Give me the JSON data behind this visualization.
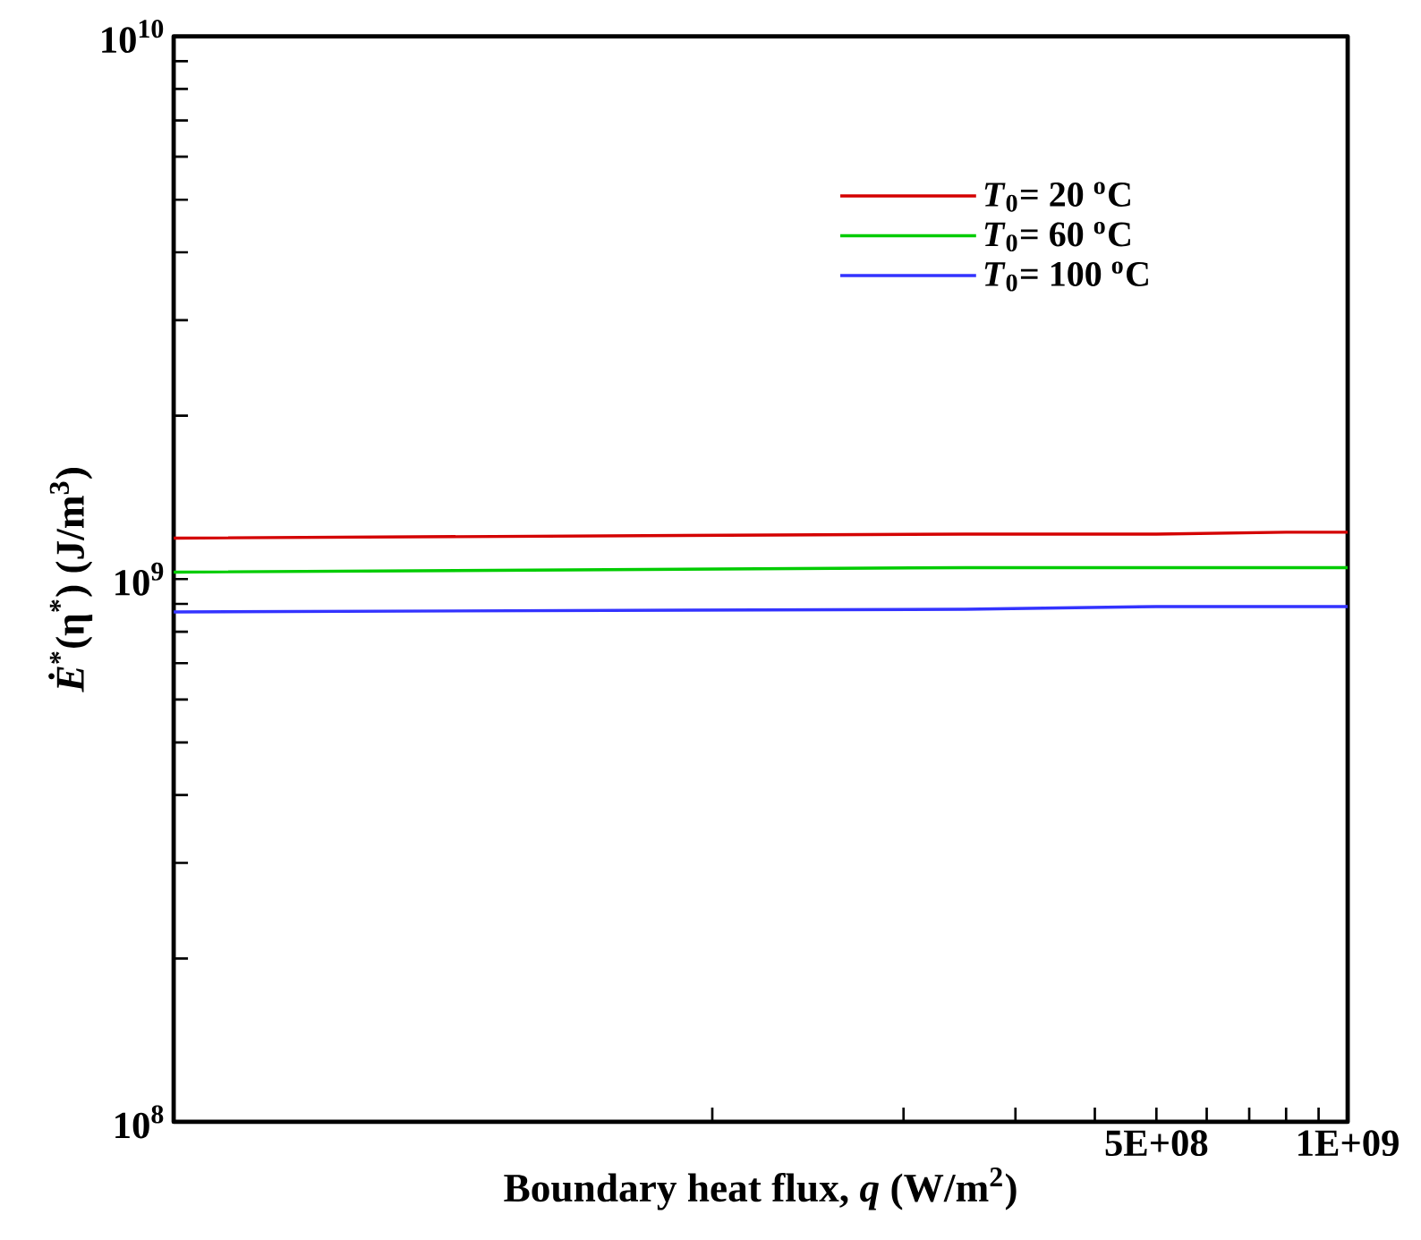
{
  "chart_data": {
    "type": "line",
    "xlabel": "Boundary heat flux, *q* (W/m$^{2}$)",
    "ylabel": "*Ė*$^{*}$(η$^{*}$) (J/m$^{3}$)",
    "x": [
      14200000.0,
      250000000.0,
      500000000.0,
      800000000.0,
      1000000000.0
    ],
    "series": [
      {
        "name": "*T*$_{0}$= 20 $^{o}$C",
        "color": "#d40000",
        "values": [
          1190000000.0,
          1210000000.0,
          1210000000.0,
          1220000000.0,
          1220000000.0
        ]
      },
      {
        "name": "*T*$_{0}$= 60 $^{o}$C",
        "color": "#00cc00",
        "values": [
          1030000000.0,
          1050000000.0,
          1050000000.0,
          1050000000.0,
          1050000000.0
        ]
      },
      {
        "name": "*T*$_{0}$= 100 $^{o}$C",
        "color": "#3333ff",
        "values": [
          870000000.0,
          880000000.0,
          890000000.0,
          890000000.0,
          890000000.0
        ]
      }
    ],
    "log": "xy",
    "xlim": [
      14200000.0,
      1000000000.0
    ],
    "ylim": [
      100000000.0,
      10000000000.0
    ],
    "xticks": [
      {
        "value": 100000000.0,
        "label": null
      },
      {
        "value": 200000000.0,
        "label": null
      },
      {
        "value": 300000000.0,
        "label": null
      },
      {
        "value": 400000000.0,
        "label": null
      },
      {
        "value": 500000000.0,
        "label": "5E+08"
      },
      {
        "value": 600000000.0,
        "label": null
      },
      {
        "value": 700000000.0,
        "label": null
      },
      {
        "value": 800000000.0,
        "label": null
      },
      {
        "value": 900000000.0,
        "label": null
      },
      {
        "value": 1000000000.0,
        "label": "1E+09"
      }
    ],
    "yticks": [
      {
        "value": 100000000.0,
        "label": "10$^{8}$"
      },
      {
        "value": 200000000.0,
        "label": null
      },
      {
        "value": 300000000.0,
        "label": null
      },
      {
        "value": 400000000.0,
        "label": null
      },
      {
        "value": 500000000.0,
        "label": null
      },
      {
        "value": 600000000.0,
        "label": null
      },
      {
        "value": 700000000.0,
        "label": null
      },
      {
        "value": 800000000.0,
        "label": null
      },
      {
        "value": 900000000.0,
        "label": null
      },
      {
        "value": 1000000000.0,
        "label": "10$^{9}$"
      },
      {
        "value": 2000000000.0,
        "label": null
      },
      {
        "value": 3000000000.0,
        "label": null
      },
      {
        "value": 4000000000.0,
        "label": null
      },
      {
        "value": 5000000000.0,
        "label": null
      },
      {
        "value": 6000000000.0,
        "label": null
      },
      {
        "value": 7000000000.0,
        "label": null
      },
      {
        "value": 8000000000.0,
        "label": null
      },
      {
        "value": 9000000000.0,
        "label": null
      },
      {
        "value": 10000000000.0,
        "label": "10$^{10}$"
      }
    ],
    "grid": false,
    "legend": "top right",
    "marker": "none",
    "line_style": "solid"
  }
}
